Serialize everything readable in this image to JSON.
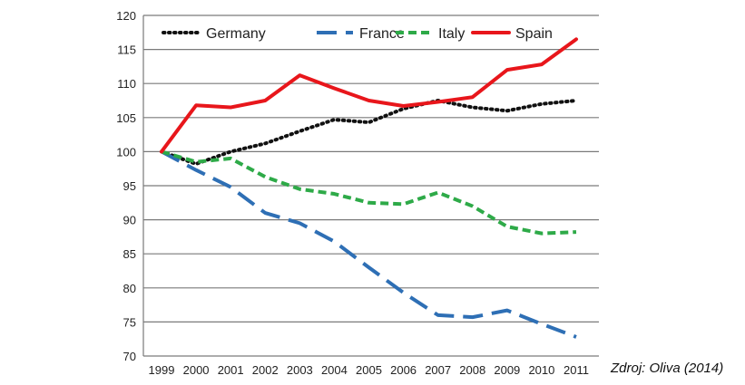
{
  "chart_data": {
    "type": "line",
    "title": "",
    "xlabel": "",
    "ylabel": "",
    "ylim": [
      70,
      120
    ],
    "yticks": [
      70,
      75,
      80,
      85,
      90,
      95,
      100,
      105,
      110,
      115,
      120
    ],
    "grid": true,
    "legend_position": "top",
    "x": [
      "1999",
      "2000",
      "2001",
      "2002",
      "2003",
      "2004",
      "2005",
      "2006",
      "2007",
      "2008",
      "2009",
      "2010",
      "2011"
    ],
    "series": [
      {
        "name": "Germany",
        "color": "#111111",
        "style": "dotted",
        "values": [
          100,
          98.2,
          100,
          101.2,
          103,
          104.7,
          104.3,
          106.3,
          107.5,
          106.5,
          106,
          107,
          107.5
        ]
      },
      {
        "name": "France",
        "color": "#2e6fb5",
        "style": "dashed",
        "values": [
          100,
          97.3,
          94.8,
          91,
          89.5,
          86.8,
          83,
          79.3,
          76,
          75.7,
          76.7,
          74.7,
          72.8
        ]
      },
      {
        "name": "Italy",
        "color": "#2eaa48",
        "style": "short-dashed",
        "values": [
          100,
          98.5,
          99,
          96.3,
          94.5,
          93.8,
          92.5,
          92.3,
          94,
          92,
          89,
          88,
          88.2
        ]
      },
      {
        "name": "Spain",
        "color": "#e8161b",
        "style": "solid",
        "values": [
          100,
          106.8,
          106.5,
          107.5,
          111.2,
          109.3,
          107.5,
          106.7,
          107.3,
          108,
          112,
          112.8,
          116.5
        ]
      }
    ]
  },
  "source_note": "Zdroj: Oliva (2014)"
}
